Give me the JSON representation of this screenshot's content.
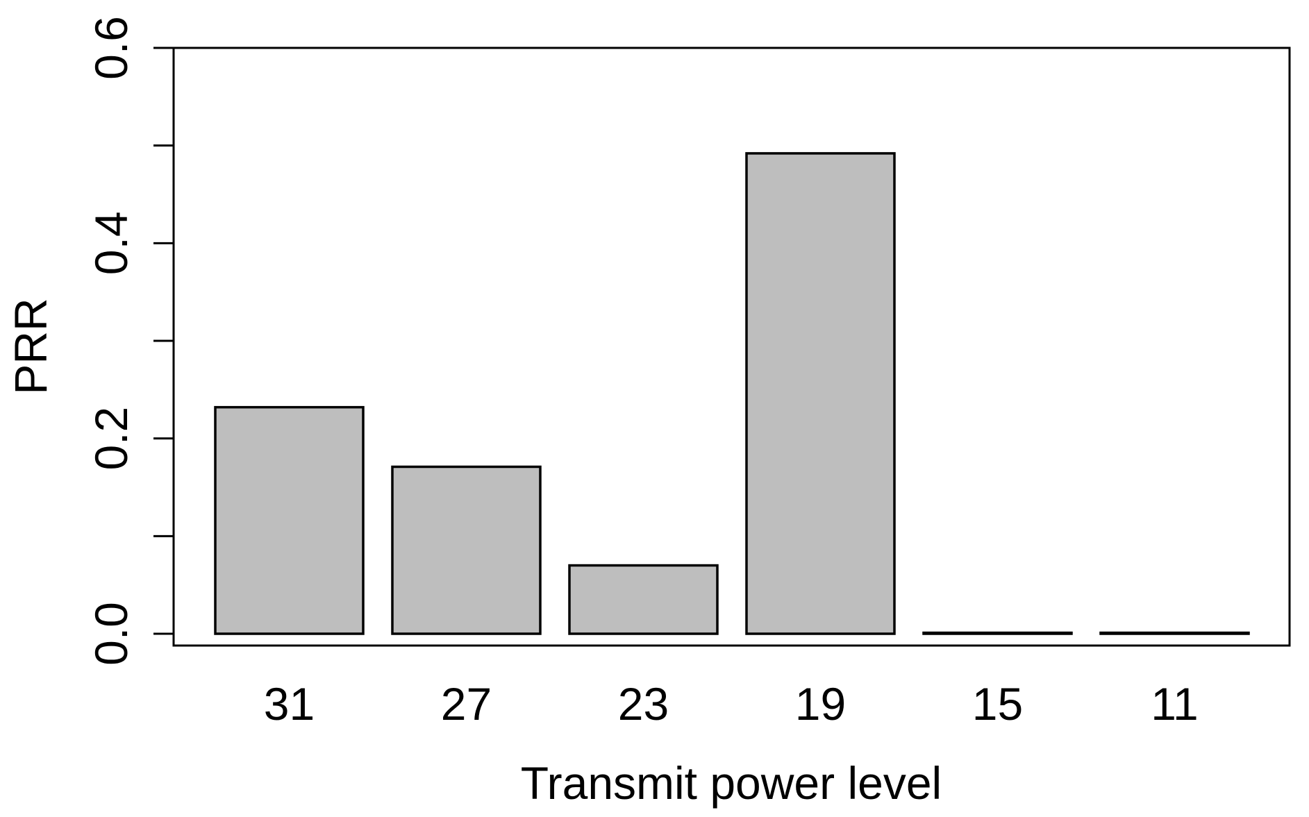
{
  "figure": {
    "background": "#ffffff"
  },
  "chart_data": {
    "type": "bar",
    "title": "",
    "xlabel": "Transmit power level",
    "ylabel": "PRR",
    "categories": [
      "31",
      "27",
      "23",
      "19",
      "15",
      "11"
    ],
    "values": [
      0.232,
      0.171,
      0.07,
      0.492,
      0.001,
      0.001
    ],
    "ylim": [
      0,
      0.6
    ],
    "yticks_labeled": [
      0.0,
      0.2,
      0.4,
      0.6
    ],
    "ytick_labels": [
      "0.0",
      "0.2",
      "0.4",
      "0.6"
    ],
    "yticks_minor": [
      0.1,
      0.3,
      0.5
    ],
    "grid": false,
    "legend": null,
    "box_around_plot": true,
    "x_ticks_shown": false,
    "bar_fill": "#bebebe",
    "bar_border": "#000000",
    "axis_color": "#000000",
    "text_color": "#000000"
  }
}
